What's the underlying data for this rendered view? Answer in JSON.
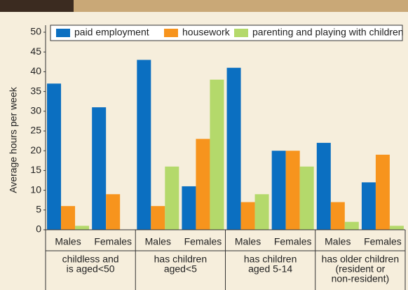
{
  "chart_data": {
    "type": "bar",
    "y_label": "Average hours per week",
    "categories": [
      "Males",
      "Females",
      "Males",
      "Females",
      "Males",
      "Females",
      "Males",
      "Females"
    ],
    "groups": [
      [
        "childless and",
        "is aged<50"
      ],
      [
        "has children",
        "aged<5"
      ],
      [
        "has children",
        "aged 5-14"
      ],
      [
        "has older children",
        "(resident or",
        "non-resident)"
      ]
    ],
    "series": [
      {
        "name": "paid employment",
        "color": "#0b6fc1",
        "values": [
          37,
          31,
          43,
          11,
          41,
          20,
          22,
          12
        ]
      },
      {
        "name": "housework",
        "color": "#f7941d",
        "values": [
          6,
          9,
          6,
          23,
          7,
          20,
          7,
          19
        ]
      },
      {
        "name": "parenting and playing with children",
        "color": "#b4d96b",
        "values": [
          1,
          0,
          16,
          38,
          9,
          16,
          2,
          1
        ]
      }
    ],
    "ylim": [
      0,
      50
    ],
    "yticks": [
      0,
      5,
      10,
      15,
      20,
      25,
      30,
      35,
      40,
      45,
      50
    ],
    "legend": "top",
    "grid": false
  }
}
